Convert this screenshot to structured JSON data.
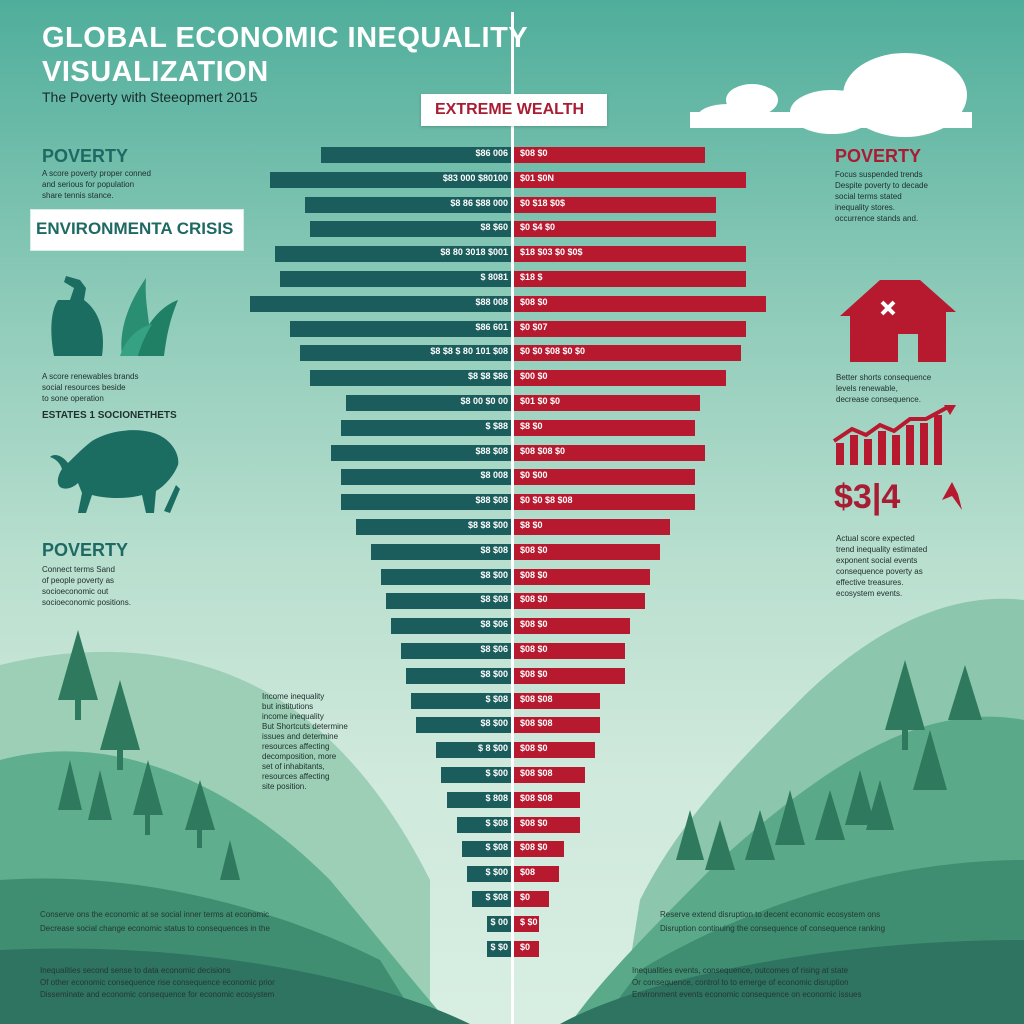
{
  "header": {
    "title_line1": "GLOBAL ECONOMIC INEQUALITY",
    "title_line2": "VISUALIZATION",
    "subtitle": "The Poverty with Steeopmert 2015"
  },
  "center_label": "EXTREME WEALTH",
  "left_panel": {
    "poverty_heading": "POVERTY",
    "poverty_text": [
      "A score poverty proper conned",
      "and serious for population",
      "share tennis stance."
    ],
    "env_label": "ENVIRONMENTA CRISIS",
    "env_text": [
      "A score renewables brands",
      "social resources beside",
      "to sone operation"
    ],
    "env_caption": "ESTATES 1 SOCIONETHETS",
    "poverty2_heading": "POVERTY",
    "poverty2_text": [
      "Connect terms Sand",
      "of people poverty as",
      "socioeconomic out",
      "socioeconomic positions."
    ]
  },
  "right_panel": {
    "poverty_heading": "POVERTY",
    "poverty_text": [
      "Focus suspended trends",
      "Despite poverty to decade",
      "social terms stated",
      "inequality stores.",
      "occurrence stands and."
    ],
    "poverty2_text": [
      "Better shorts consequence",
      "levels renewable,",
      "decrease consequence."
    ],
    "big_value": "$3|4",
    "right_text": [
      "Actual score expected",
      "trend inequality estimated",
      "exponent social events",
      "consequence poverty as",
      "effective treasures.",
      "ecosystem events."
    ]
  },
  "bottom_mid_text": [
    "Income inequality",
    "but institutions",
    "income inequality",
    "But Shortcuts determine",
    "issues and determine",
    "resources affecting",
    "decomposition, more",
    "set of inhabitants,",
    "resources affecting",
    "site position."
  ],
  "footer_left": [
    "Conserve ons the economic at se social inner terms at economic",
    "Decrease social change economic status to consequences in the",
    "Inequalities second sense to data economic decisions",
    "Of other economic consequence rise consequence economic prior",
    "Disseminate and economic consequence for economic ecosystem"
  ],
  "footer_right": [
    "Reserve extend disruption to decent economic ecosystem ons",
    "Disruption continuing the consequence of consequence ranking",
    "Inequalities events, consequence, outcomes of rising at state",
    "Or consequence, control to to emerge of economic disruption",
    "Environment events economic consequence on economic issues"
  ],
  "colors": {
    "poverty_teal": "#1b5d5c",
    "wealth_red": "#b7192f",
    "accent_white": "#ffffff"
  },
  "chart_data": {
    "type": "bar",
    "title": "EXTREME WEALTH",
    "orientation": "horizontal-diverging",
    "series": [
      {
        "name": "Poverty",
        "labels": [
          "$86 006",
          "$83 000 $80100",
          "$8 86 $88 000",
          "$8 $60",
          "$8 80 3018 $001",
          "$ 8081",
          "$88 008",
          "$86 601",
          "$8 $8 $ 80 101 $08",
          "$8 $8 $86",
          "$8 00 $0 00",
          "$ $88",
          "$88 $08",
          "$8 008",
          "$88 $08",
          "$8 $8 $00",
          "$8 $08",
          "$8 $00",
          "$8 $08",
          "$8 $06",
          "$8 $06",
          "$8 $00",
          "$ $08",
          "$8 $00",
          "$ 8 $00",
          "$ $00",
          "$ 808",
          "$ $08",
          "$ $08",
          "$ $00",
          "$ $08",
          "$ 00",
          "$ $0"
        ],
        "values": [
          3.8,
          4.8,
          4.1,
          4.0,
          4.7,
          4.6,
          5.2,
          4.4,
          4.2,
          4.0,
          3.3,
          3.4,
          3.6,
          3.4,
          3.4,
          3.1,
          2.8,
          2.6,
          2.5,
          2.4,
          2.2,
          2.1,
          2.0,
          1.9,
          1.5,
          1.4,
          1.3,
          1.1,
          1.0,
          0.9,
          0.8,
          0.5,
          0.5
        ]
      },
      {
        "name": "Extreme Wealth",
        "labels": [
          "$08 $0",
          "$01 $0N",
          "$0 $18 $0$",
          "$0 $4 $0",
          "$18 $03 $0 $0$",
          "$18 $",
          "$08 $0",
          "$0 $07",
          "$0 $0 $08 $0 $0",
          "$00 $0",
          "$01 $0 $0",
          "$8 $0",
          "$08 $08 $0",
          "$0 $00",
          "$0 $0 $8 $08",
          "$8 $0",
          "$08 $0",
          "$08 $0",
          "$08 $0",
          "$08 $0",
          "$08 $0",
          "$08 $0",
          "$08 $08",
          "$08 $08",
          "$08 $0",
          "$08 $08",
          "$08 $08",
          "$08 $0",
          "$08 $0",
          "$08",
          "$0",
          "$ $0",
          "$0"
        ],
        "values": [
          3.8,
          4.6,
          4.0,
          4.0,
          4.6,
          4.6,
          5.0,
          4.6,
          4.5,
          4.2,
          3.7,
          3.6,
          3.8,
          3.6,
          3.6,
          3.1,
          2.9,
          2.7,
          2.6,
          2.3,
          2.2,
          2.2,
          1.7,
          1.7,
          1.6,
          1.4,
          1.3,
          1.3,
          1.0,
          0.9,
          0.7,
          0.5,
          0.5
        ]
      }
    ],
    "xlim": [
      0,
      5.2
    ]
  }
}
